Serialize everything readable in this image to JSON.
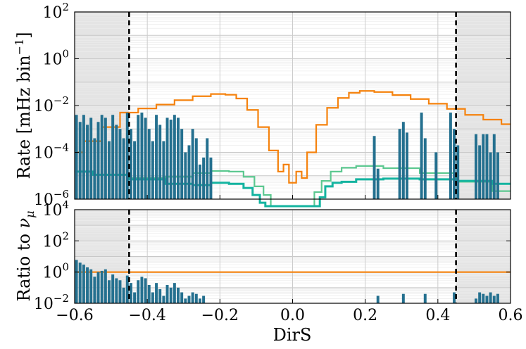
{
  "chart_data": [
    {
      "type": "line",
      "panel": "top",
      "ylabel_text": "Rate [mHz bin",
      "ylabel_sup": "−1",
      "ylabel_close": "]",
      "yscale": "log",
      "xlim": [
        -0.6,
        0.6
      ],
      "ylim": [
        1e-06,
        100
      ],
      "y_ticks": [
        {
          "value": 100,
          "base": "10",
          "exp": "2"
        },
        {
          "value": 1,
          "base": "10",
          "exp": "0"
        },
        {
          "value": 0.01,
          "base": "10",
          "exp": "−2"
        },
        {
          "value": 0.0001,
          "base": "10",
          "exp": "−4"
        },
        {
          "value": 1e-06,
          "base": "10",
          "exp": "−6"
        }
      ],
      "grid": true,
      "shaded_regions": [
        [
          -0.6,
          -0.45
        ],
        [
          0.45,
          0.6
        ]
      ],
      "vlines": [
        -0.45,
        0.45
      ],
      "colors": {
        "orange": "#f5820d",
        "blue": "#24708f",
        "teal": "#14b4a0",
        "green": "#5cc890"
      },
      "series": [
        {
          "color_key": "orange",
          "x": [
            -0.6,
            -0.55,
            -0.5,
            -0.45,
            -0.4,
            -0.35,
            -0.3,
            -0.25,
            -0.2,
            -0.17,
            -0.14,
            -0.11,
            -0.08,
            -0.05,
            -0.03,
            -0.02,
            0.0,
            0.02,
            0.03,
            0.05,
            0.08,
            0.11,
            0.14,
            0.17,
            0.2,
            0.25,
            0.3,
            0.35,
            0.4,
            0.45,
            0.5,
            0.55,
            0.6
          ],
          "values": [
            0.0001,
            0.0003,
            0.0012,
            0.005,
            0.0075,
            0.011,
            0.017,
            0.025,
            0.031,
            0.029,
            0.02,
            0.0065,
            0.0012,
            0.00012,
            1.5e-05,
            3e-05,
            5e-06,
            1.5e-05,
            8e-06,
            0.0001,
            0.0015,
            0.008,
            0.021,
            0.035,
            0.042,
            0.038,
            0.028,
            0.019,
            0.012,
            0.0072,
            0.004,
            0.0025,
            0.0016
          ]
        },
        {
          "color_key": "green",
          "x": [
            -0.6,
            -0.5,
            -0.4,
            -0.3,
            -0.25,
            -0.2,
            -0.15,
            -0.12,
            -0.09,
            -0.07,
            -0.05,
            0.05,
            0.07,
            0.09,
            0.12,
            0.15,
            0.2,
            0.3,
            0.4,
            0.5,
            0.6
          ],
          "values": [
            1.5e-05,
            1.1e-05,
            8e-06,
            9e-06,
            1.3e-05,
            1.6e-05,
            1.5e-05,
            9e-06,
            3.5e-06,
            1.5e-06,
            5e-07,
            5e-07,
            2e-06,
            6e-06,
            1.5e-05,
            2.2e-05,
            2.6e-05,
            2.1e-05,
            1.3e-05,
            5.5e-06,
            2.2e-06
          ]
        },
        {
          "color_key": "teal",
          "x": [
            -0.6,
            -0.5,
            -0.4,
            -0.3,
            -0.25,
            -0.2,
            -0.15,
            -0.12,
            -0.1,
            -0.08,
            -0.07,
            0.07,
            0.08,
            0.1,
            0.12,
            0.15,
            0.2,
            0.3,
            0.4,
            0.5,
            0.6
          ],
          "values": [
            1.5e-05,
            1.1e-05,
            7e-06,
            4.5e-06,
            4e-06,
            5e-06,
            4.5e-06,
            3e-06,
            1.5e-06,
            7e-07,
            5e-07,
            5e-07,
            1.2e-06,
            3.5e-06,
            5e-06,
            5.5e-06,
            7e-06,
            7.5e-06,
            7e-06,
            6e-06,
            4.5e-06
          ]
        },
        {
          "color_key": "blue",
          "style": "bars",
          "x": [
            -0.595,
            -0.585,
            -0.575,
            -0.565,
            -0.555,
            -0.545,
            -0.535,
            -0.525,
            -0.515,
            -0.505,
            -0.495,
            -0.485,
            -0.475,
            -0.465,
            -0.455,
            -0.445,
            -0.435,
            -0.425,
            -0.415,
            -0.405,
            -0.395,
            -0.385,
            -0.375,
            -0.365,
            -0.355,
            -0.345,
            -0.335,
            -0.325,
            -0.315,
            -0.305,
            -0.295,
            -0.285,
            -0.275,
            -0.265,
            -0.255,
            -0.245,
            -0.235,
            -0.225,
            0.225,
            0.235,
            0.295,
            0.305,
            0.315,
            0.355,
            0.365,
            0.395,
            0.435,
            0.445,
            0.455,
            0.505,
            0.515,
            0.525,
            0.535,
            0.545,
            0.555,
            0.565
          ],
          "values": [
            0.004,
            0.002,
            0.004,
            0.0015,
            0.003,
            0.0004,
            0.002,
            0.004,
            0.003,
            0.0003,
            0.004,
            0.0015,
            0.001,
            0.0004,
            0.005,
            0.001,
            0.0003,
            0.004,
            0.005,
            0.003,
            0.001,
            0.0003,
            0.004,
            0.0015,
            0.0003,
            0.003,
            0.0025,
            0.004,
            0.003,
            0.001,
            0.0001,
            0.0002,
            0.001,
            0.0004,
            3e-05,
            6e-05,
            0.0004,
            6e-05,
            0.0005,
            2e-05,
            0.001,
            0.002,
            0.0007,
            0.005,
            0.0004,
            0.0001,
            0.005,
            0.001,
            0.0002,
            0.0006,
            0.0002,
            0.0006,
            0.0006,
            0.0001,
            0.0006,
            0.0001
          ]
        }
      ]
    },
    {
      "type": "line",
      "panel": "bottom",
      "ylabel_text": "Ratio to ",
      "ylabel_math": "ν",
      "ylabel_sub": "μ",
      "yscale": "log",
      "xlim": [
        -0.6,
        0.6
      ],
      "ylim": [
        0.01,
        10000
      ],
      "xlabel": "DirS",
      "x_ticks": [
        {
          "value": -0.6,
          "label": "−0.6"
        },
        {
          "value": -0.4,
          "label": "−0.4"
        },
        {
          "value": -0.2,
          "label": "−0.2"
        },
        {
          "value": 0.0,
          "label": "0.0"
        },
        {
          "value": 0.2,
          "label": "0.2"
        },
        {
          "value": 0.4,
          "label": "0.4"
        },
        {
          "value": 0.6,
          "label": "0.6"
        }
      ],
      "y_ticks": [
        {
          "value": 10000,
          "base": "10",
          "exp": "4"
        },
        {
          "value": 100,
          "base": "10",
          "exp": "2"
        },
        {
          "value": 1,
          "base": "10",
          "exp": "0"
        },
        {
          "value": 0.01,
          "base": "10",
          "exp": "−2"
        }
      ],
      "grid": true,
      "shaded_regions": [
        [
          -0.6,
          -0.45
        ],
        [
          0.45,
          0.6
        ]
      ],
      "vlines": [
        -0.45,
        0.45
      ],
      "series": [
        {
          "color_key": "orange",
          "x": [
            -0.6,
            0.6
          ],
          "values": [
            1,
            1
          ]
        },
        {
          "color_key": "blue",
          "style": "bars",
          "x": [
            -0.595,
            -0.585,
            -0.575,
            -0.565,
            -0.555,
            -0.545,
            -0.535,
            -0.525,
            -0.515,
            -0.505,
            -0.495,
            -0.485,
            -0.475,
            -0.465,
            -0.455,
            -0.445,
            -0.435,
            -0.425,
            -0.415,
            -0.405,
            -0.395,
            -0.385,
            -0.375,
            -0.365,
            -0.355,
            -0.345,
            -0.335,
            -0.325,
            -0.315,
            -0.305,
            -0.295,
            -0.285,
            -0.275,
            -0.265,
            -0.255,
            -0.245,
            0.235,
            0.305,
            0.365,
            0.445,
            0.505,
            0.515,
            0.525,
            0.535,
            0.545,
            0.555,
            0.565
          ],
          "values": [
            6,
            4,
            3,
            2,
            1.5,
            0.5,
            1,
            1.2,
            1.5,
            0.3,
            0.7,
            0.4,
            0.3,
            0.1,
            0.6,
            0.2,
            0.05,
            0.3,
            0.5,
            0.4,
            0.15,
            0.05,
            0.2,
            0.08,
            0.03,
            0.15,
            0.1,
            0.2,
            0.1,
            0.05,
            0.02,
            0.03,
            0.05,
            0.04,
            0.02,
            0.03,
            0.03,
            0.04,
            0.04,
            0.05,
            0.02,
            0.05,
            0.04,
            0.03,
            0.05,
            0.03,
            0.04
          ]
        }
      ]
    }
  ]
}
